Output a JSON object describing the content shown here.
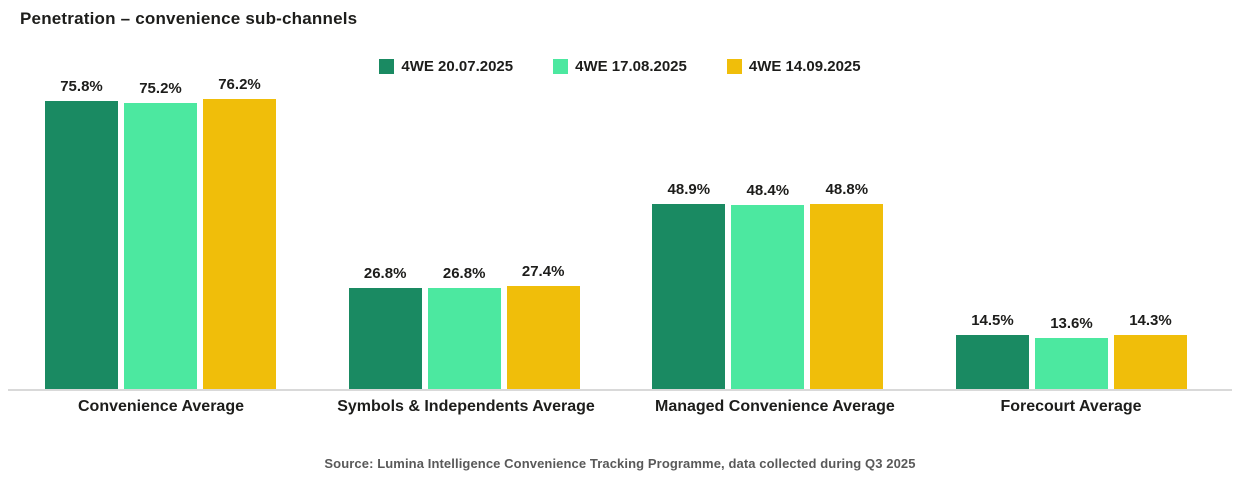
{
  "title": "Penetration – convenience sub-channels",
  "source_note": "Source: Lumina Intelligence Convenience Tracking Programme, data collected during Q3 2025",
  "colors": {
    "series_1": "#1A8A62",
    "series_2": "#4CE8A0",
    "series_3": "#F0BE0A",
    "text_dark": "#1D1D1B",
    "source_gray": "#595959",
    "axis_line": "#D9D9D9",
    "background": "#FFFFFF"
  },
  "chart_data": {
    "type": "bar",
    "title": "Penetration – convenience sub-channels",
    "categories": [
      "Convenience Average",
      "Symbols & Independents Average",
      "Managed Convenience Average",
      "Forecourt Average"
    ],
    "series": [
      {
        "name": "4WE 20.07.2025",
        "color": "#1A8A62",
        "values": [
          75.8,
          26.8,
          48.9,
          14.5
        ]
      },
      {
        "name": "4WE 17.08.2025",
        "color": "#4CE8A0",
        "values": [
          75.2,
          26.8,
          48.4,
          13.6
        ]
      },
      {
        "name": "4WE 14.09.2025",
        "color": "#F0BE0A",
        "values": [
          76.2,
          27.4,
          48.8,
          14.3
        ]
      }
    ],
    "data_labels": true,
    "value_label_suffix": "%",
    "value_label_decimals": 1,
    "xlabel": "",
    "ylabel": "",
    "ylim": [
      0,
      80
    ],
    "grid": false,
    "legend_position": "top-center"
  }
}
